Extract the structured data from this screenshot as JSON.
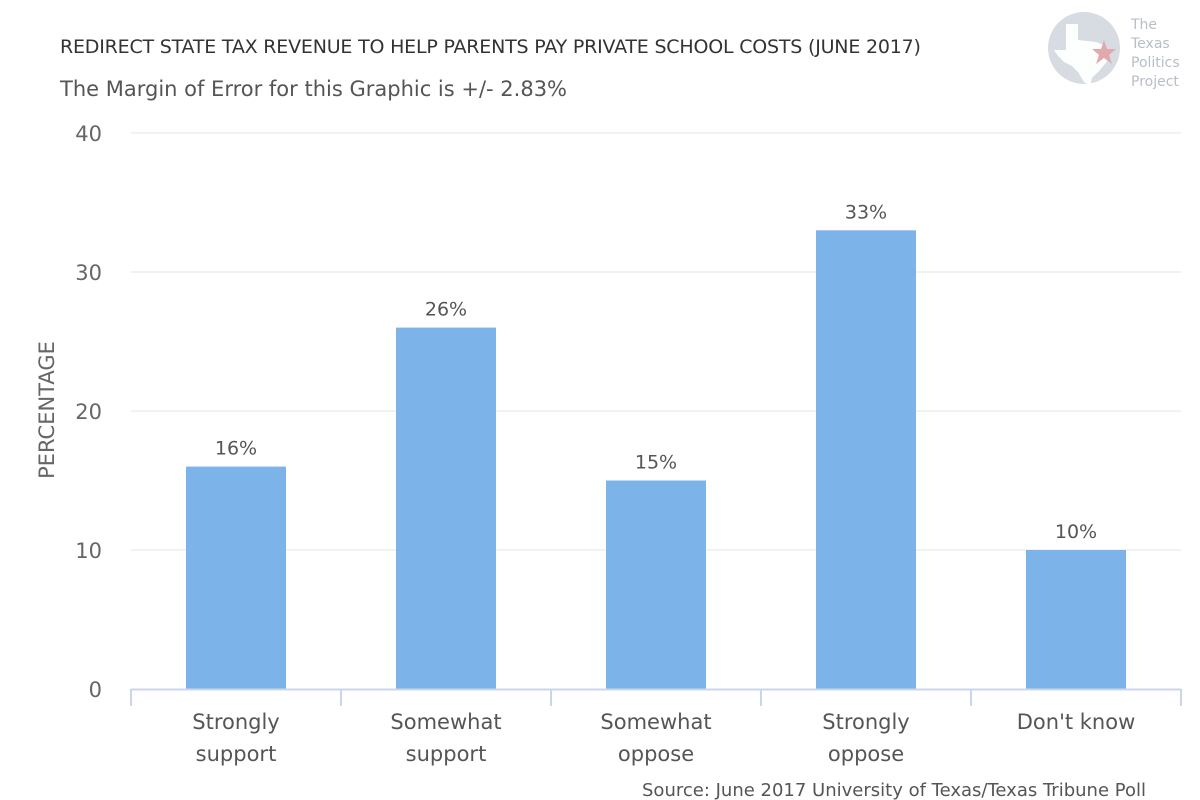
{
  "header": {
    "title": "REDIRECT STATE TAX REVENUE TO HELP PARENTS PAY PRIVATE SCHOOL COSTS (JUNE 2017)",
    "subtitle": "The Margin of Error for this Graphic is +/- 2.83%"
  },
  "logo": {
    "line1": "The",
    "line2": "Texas",
    "line3": "Politics",
    "line4": "Project"
  },
  "footer": {
    "source": "Source: June 2017 University of Texas/Texas Tribune Poll"
  },
  "colors": {
    "bar": "#7cb4ea",
    "grid": "#e6e6e6",
    "axis": "#ccd6eb",
    "logo_circle": "#d7dce2",
    "logo_star": "#e3a8ac"
  },
  "chart_data": {
    "type": "bar",
    "title": "REDIRECT STATE TAX REVENUE TO HELP PARENTS PAY PRIVATE SCHOOL COSTS (JUNE 2017)",
    "subtitle": "The Margin of Error for this Graphic is +/- 2.83%",
    "categories": [
      [
        "Strongly",
        "support"
      ],
      [
        "Somewhat",
        "support"
      ],
      [
        "Somewhat",
        "oppose"
      ],
      [
        "Strongly",
        "oppose"
      ],
      [
        "Don't know"
      ]
    ],
    "values": [
      16,
      26,
      15,
      33,
      10
    ],
    "data_labels": [
      "16%",
      "26%",
      "15%",
      "33%",
      "10%"
    ],
    "xlabel": "",
    "ylabel": "PERCENTAGE",
    "ylim": [
      0,
      40
    ],
    "yticks": [
      0,
      10,
      20,
      30,
      40
    ],
    "grid": true,
    "legend": "none"
  }
}
